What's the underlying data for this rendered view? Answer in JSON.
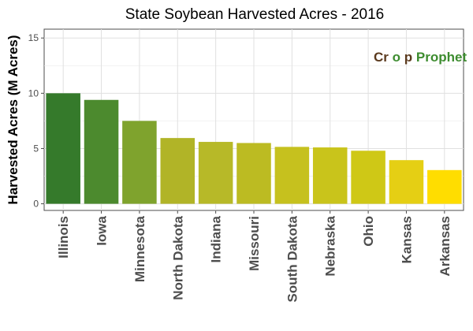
{
  "chart_data": {
    "type": "bar",
    "title": "State Soybean Harvested Acres - 2016",
    "xlabel": "",
    "ylabel": "Harvested Acres (M Acres)",
    "ylim": [
      -0.6,
      15.8
    ],
    "yticks": [
      0,
      5,
      10,
      15
    ],
    "grid": true,
    "legend": "none",
    "categories": [
      "Illinois",
      "Iowa",
      "Minnesota",
      "North Dakota",
      "Indiana",
      "Missouri",
      "South Dakota",
      "Nebraska",
      "Ohio",
      "Kansas",
      "Arkansas"
    ],
    "values": [
      10.0,
      9.4,
      7.5,
      5.95,
      5.6,
      5.5,
      5.15,
      5.1,
      4.8,
      3.95,
      3.05
    ],
    "colors": [
      "#357a2b",
      "#4c8a2e",
      "#7fa32d",
      "#b1b427",
      "#b7b928",
      "#bcbb22",
      "#c6c11e",
      "#c9c41b",
      "#cfc816",
      "#e5cf14",
      "#ffdd00"
    ]
  },
  "watermark": {
    "text_part1": "Cr",
    "text_part2": "p",
    "text_part3": "Prophet",
    "color_dark": "#5b3a1e",
    "color_green": "#3d8c2f"
  }
}
